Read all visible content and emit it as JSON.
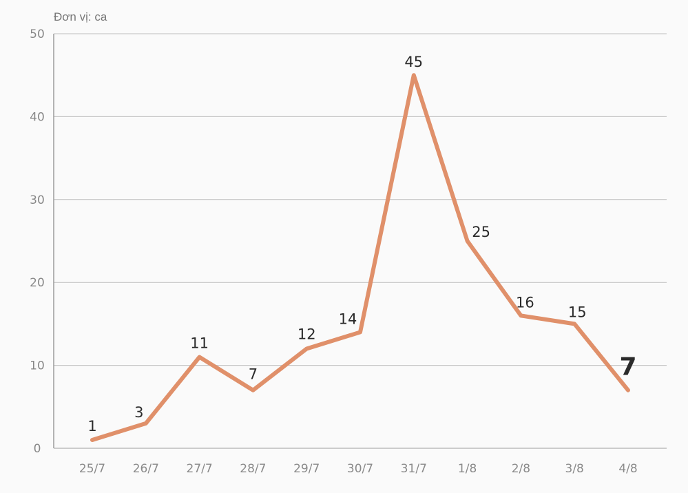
{
  "chart_data": {
    "type": "line",
    "unit_label": "Đơn vị: ca",
    "categories": [
      "25/7",
      "26/7",
      "27/7",
      "28/7",
      "29/7",
      "30/7",
      "31/7",
      "1/8",
      "2/8",
      "3/8",
      "4/8"
    ],
    "values": [
      1,
      3,
      11,
      7,
      12,
      14,
      45,
      25,
      16,
      15,
      7
    ],
    "ylim": [
      0,
      50
    ],
    "yticks": [
      0,
      10,
      20,
      30,
      40,
      50
    ],
    "grid": true,
    "colors": {
      "line": "#e0906a",
      "highlight_label": "#e0906a",
      "grid": "#bdbdbd",
      "axis": "#999999"
    }
  }
}
